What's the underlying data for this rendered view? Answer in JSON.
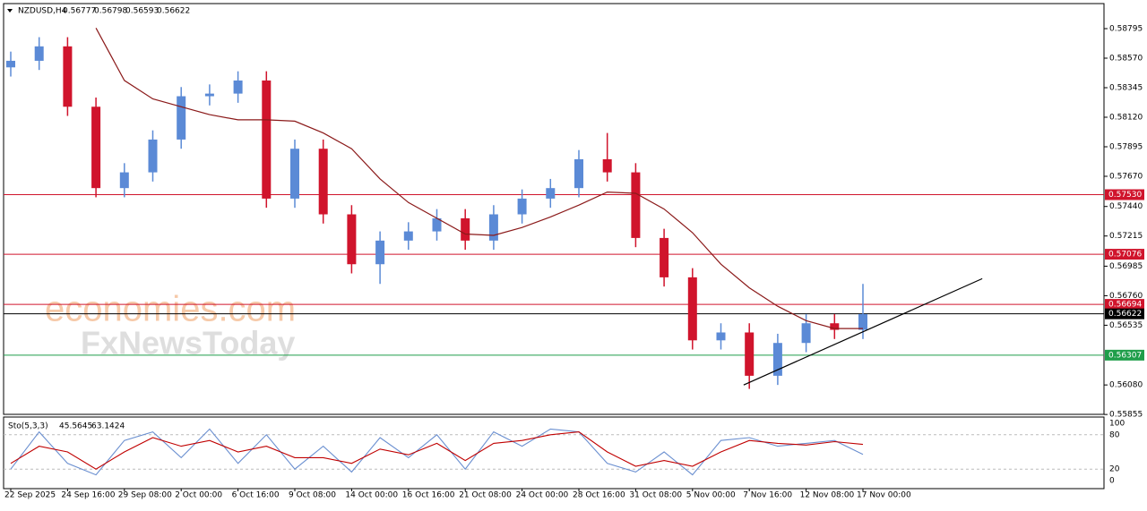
{
  "chart_data": {
    "type": "candlestick",
    "symbol": "NZDUSD,H4",
    "quote": [
      0.56777,
      0.56798,
      0.56593,
      0.56622
    ],
    "watermarks": [
      "economies.com",
      "FxNewsToday"
    ],
    "categories": [
      "22 Sep 2025",
      null,
      "24 Sep 16:00",
      null,
      "29 Sep 08:00",
      null,
      "2 Oct 00:00",
      null,
      "6 Oct 16:00",
      null,
      "9 Oct 08:00",
      null,
      "14 Oct 00:00",
      null,
      "16 Oct 16:00",
      null,
      "21 Oct 08:00",
      null,
      "24 Oct 00:00",
      null,
      "28 Oct 16:00",
      null,
      "31 Oct 08:00",
      null,
      "5 Nov 00:00",
      null,
      "7 Nov 16:00",
      null,
      "12 Nov 08:00",
      null,
      "17 Nov 00:00"
    ],
    "open": [
      0.585,
      0.5855,
      0.5866,
      0.582,
      0.5758,
      0.577,
      0.5795,
      0.5828,
      0.583,
      0.584,
      0.575,
      0.5788,
      0.5738,
      0.57,
      0.5718,
      0.5725,
      0.5735,
      0.5718,
      0.5738,
      0.575,
      0.5758,
      0.578,
      0.577,
      0.572,
      0.569,
      0.5642,
      0.5648,
      0.5615,
      0.564,
      0.5655,
      0.565
    ],
    "high": [
      0.5862,
      0.5873,
      0.5873,
      0.5827,
      0.5777,
      0.5802,
      0.5835,
      0.5837,
      0.5847,
      0.5847,
      0.5795,
      0.5795,
      0.5745,
      0.5725,
      0.5732,
      0.5742,
      0.5742,
      0.5745,
      0.5757,
      0.5765,
      0.5787,
      0.58,
      0.5777,
      0.5727,
      0.5697,
      0.5655,
      0.5655,
      0.5647,
      0.5662,
      0.5662,
      0.5685
    ],
    "low": [
      0.5843,
      0.5848,
      0.5813,
      0.5751,
      0.5751,
      0.5763,
      0.5788,
      0.5821,
      0.5823,
      0.5743,
      0.5743,
      0.5731,
      0.5693,
      0.5685,
      0.5711,
      0.5718,
      0.5711,
      0.5711,
      0.5731,
      0.5743,
      0.5751,
      0.5763,
      0.5713,
      0.5683,
      0.5635,
      0.5635,
      0.5605,
      0.5608,
      0.5633,
      0.5643,
      0.5643
    ],
    "close": [
      0.5855,
      0.5866,
      0.582,
      0.5758,
      0.577,
      0.5795,
      0.5828,
      0.583,
      0.584,
      0.575,
      0.5788,
      0.5738,
      0.57,
      0.5718,
      0.5725,
      0.5735,
      0.5718,
      0.5738,
      0.575,
      0.5758,
      0.578,
      0.577,
      0.572,
      0.569,
      0.5642,
      0.5648,
      0.5615,
      0.564,
      0.5655,
      0.565,
      0.5662
    ],
    "up_color": "#5b8ad6",
    "down_color": "#d0142c",
    "moving_average": {
      "color": "#8b1a1a",
      "values": [
        null,
        null,
        null,
        0.588,
        0.584,
        0.5826,
        0.582,
        0.5814,
        0.581,
        0.581,
        0.5809,
        0.58,
        0.5788,
        0.5765,
        0.5747,
        0.5735,
        0.5723,
        0.5722,
        0.5728,
        0.5736,
        0.5745,
        0.5755,
        0.5754,
        0.5742,
        0.5724,
        0.57,
        0.5682,
        0.5668,
        0.5657,
        0.5651,
        0.5651
      ]
    },
    "trendline": {
      "color": "#000000",
      "x": [
        25.8,
        34.2
      ],
      "y": [
        0.5608,
        0.5689
      ]
    },
    "levels": [
      {
        "value": 0.5753,
        "label": "0.57530",
        "color": "#d0142c"
      },
      {
        "value": 0.57076,
        "label": "0.57076",
        "color": "#d0142c"
      },
      {
        "value": 0.56694,
        "label": "0.56694",
        "color": "#d0142c"
      },
      {
        "value": 0.56622,
        "label": "0.56622",
        "color": "#000000"
      },
      {
        "value": 0.56307,
        "label": "0.56307",
        "color": "#1f9e4a"
      }
    ],
    "ylim": [
      0.55856,
      0.58986
    ],
    "yticks": [
      0.58795,
      {
        "value": 0.5857,
        "label": "0.58570"
      },
      0.58345,
      {
        "value": 0.5812,
        "label": "0.58120"
      },
      0.57895,
      {
        "value": 0.5767,
        "label": "0.57670"
      },
      {
        "value": 0.5744,
        "label": "0.57440"
      },
      0.57215,
      0.56985,
      {
        "value": 0.5676,
        "label": "0.56760"
      },
      0.56535,
      {
        "value": 0.5608,
        "label": "0.56080"
      },
      0.55855
    ],
    "stochastic": {
      "title": "Sto(5,3,3)",
      "ylim": [
        0,
        100
      ],
      "yticks": [
        0,
        20,
        80,
        100
      ],
      "series": [
        {
          "name": "%K",
          "color": "#6a8fd0",
          "values": [
            20,
            85,
            30,
            10,
            70,
            85,
            40,
            90,
            30,
            80,
            20,
            60,
            15,
            75,
            40,
            80,
            20,
            85,
            60,
            90,
            85,
            30,
            15,
            50,
            10,
            70,
            75,
            60,
            65,
            70,
            45.5645
          ]
        },
        {
          "name": "%D",
          "color": "#c00000",
          "values": [
            30,
            60,
            50,
            20,
            50,
            75,
            60,
            70,
            50,
            60,
            40,
            40,
            30,
            55,
            45,
            65,
            35,
            65,
            70,
            80,
            85,
            50,
            25,
            35,
            25,
            50,
            70,
            65,
            62,
            68,
            63.1424
          ]
        }
      ]
    }
  }
}
